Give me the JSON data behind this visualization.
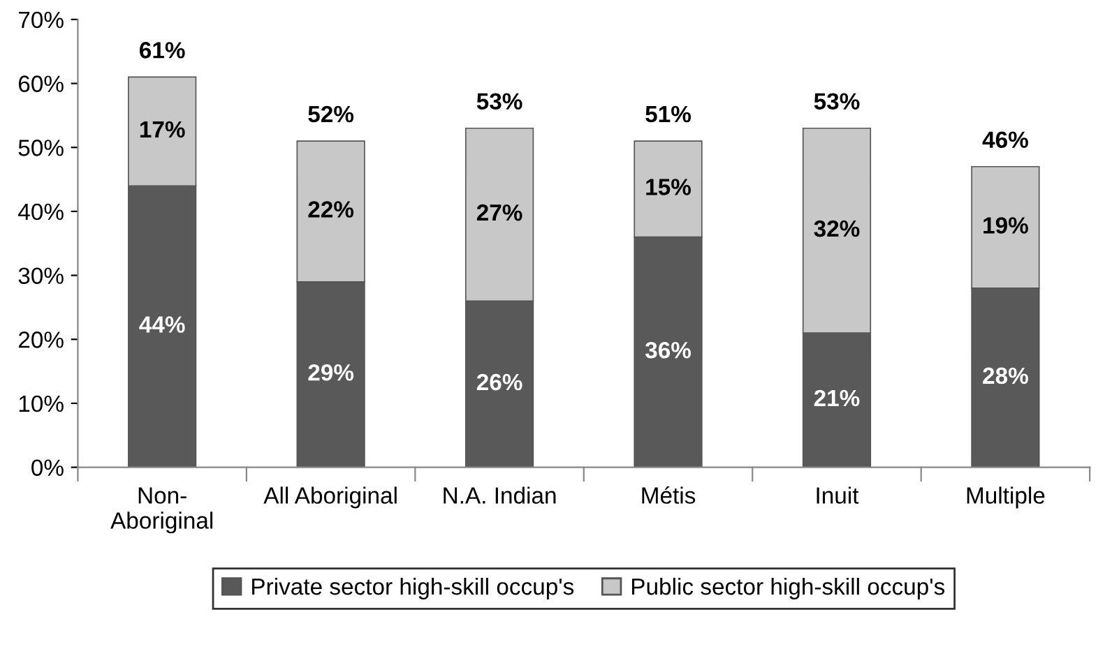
{
  "chart_data": {
    "type": "bar",
    "stacked": true,
    "categories": [
      "Non-\nAboriginal",
      "All Aboriginal",
      "N.A. Indian",
      "Métis",
      "Inuit",
      "Multiple"
    ],
    "series": [
      {
        "name": "Private sector high-skill occup's",
        "color": "#595959",
        "values": [
          44,
          29,
          26,
          36,
          21,
          28
        ],
        "value_labels": [
          "44%",
          "29%",
          "26%",
          "36%",
          "21%",
          "28%"
        ]
      },
      {
        "name": "Public sector high-skill occup's",
        "color": "#c8c8c8",
        "values": [
          17,
          22,
          27,
          15,
          32,
          19
        ],
        "value_labels": [
          "17%",
          "22%",
          "27%",
          "15%",
          "32%",
          "19%"
        ]
      }
    ],
    "totals": [
      "61%",
      "52%",
      "53%",
      "51%",
      "53%",
      "46%"
    ],
    "ylim": [
      0,
      70
    ],
    "yticks": [
      {
        "value": 0,
        "label": "0%"
      },
      {
        "value": 10,
        "label": "10%"
      },
      {
        "value": 20,
        "label": "20%"
      },
      {
        "value": 30,
        "label": "30%"
      },
      {
        "value": 40,
        "label": "40%"
      },
      {
        "value": 50,
        "label": "50%"
      },
      {
        "value": 60,
        "label": "60%"
      },
      {
        "value": 70,
        "label": "70%"
      }
    ],
    "grid": false,
    "legend": "bottom"
  }
}
